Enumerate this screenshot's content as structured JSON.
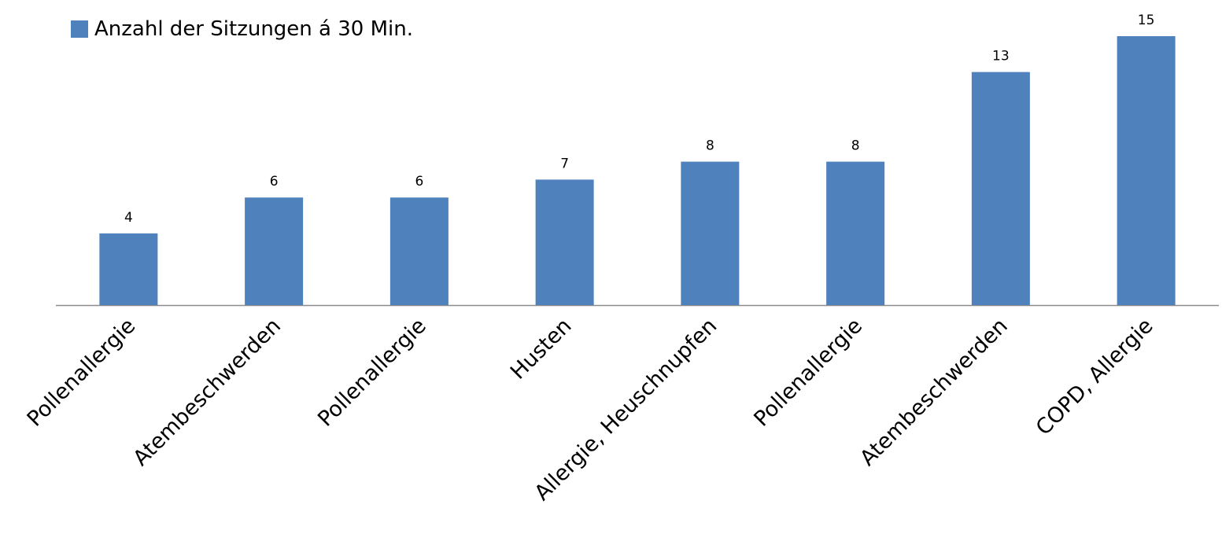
{
  "chart_data": {
    "type": "bar",
    "categories": [
      "Pollenallergie",
      "Atembeschwerden",
      "Pollenallergie",
      "Husten",
      "Allergie, Heuschnupfen",
      "Pollenallergie",
      "Atembeschwerden",
      "COPD, Allergie"
    ],
    "series": [
      {
        "name": "Anzahl der Sitzungen á 30 Min.",
        "values": [
          4,
          6,
          6,
          7,
          8,
          8,
          13,
          15
        ],
        "color": "#4f81bd"
      }
    ],
    "ylim": [
      0,
      15
    ],
    "grid": false,
    "legend_position": "top-left",
    "data_labels": true
  }
}
